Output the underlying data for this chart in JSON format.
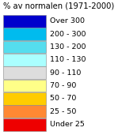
{
  "title": "% av normalen (1971-2000)",
  "title_fontsize": 7.2,
  "labels": [
    "Over 300",
    "200 - 300",
    "130 - 200",
    "110 - 130",
    "90 - 110",
    "70 - 90",
    "50 - 70",
    "25 - 50",
    "Under 25"
  ],
  "colors": [
    "#0000CC",
    "#00BBEE",
    "#55DDEE",
    "#AAFFFF",
    "#DDDDDD",
    "#FFFF88",
    "#FFCC00",
    "#FF8833",
    "#EE0000"
  ],
  "label_fontsize": 6.8,
  "background_color": "#ffffff",
  "box_edge_color": "#888888",
  "fig_width": 1.73,
  "fig_height": 1.71
}
